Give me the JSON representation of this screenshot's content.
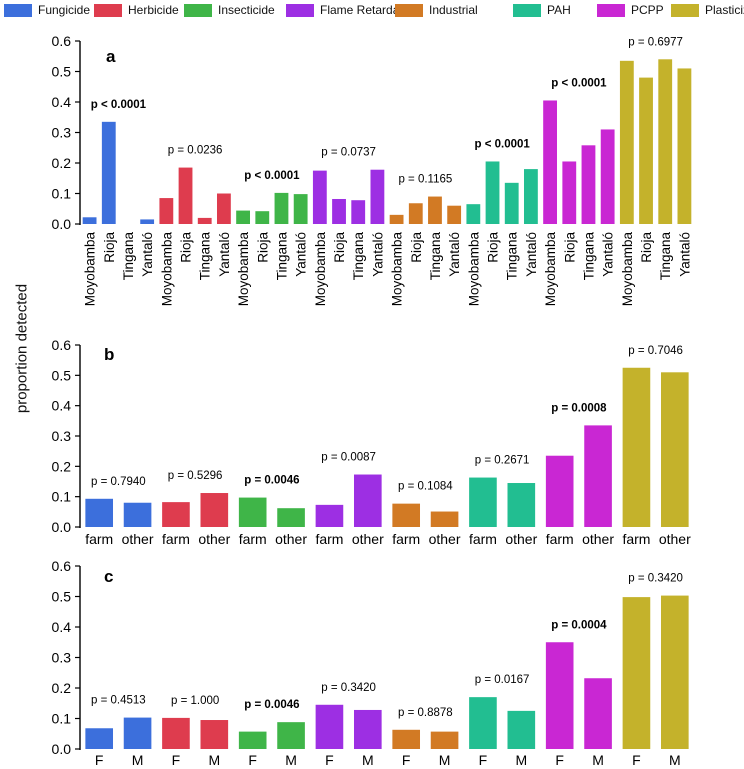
{
  "legend": [
    {
      "label": "Fungicide",
      "color": "#3c6fdc"
    },
    {
      "label": "Herbicide",
      "color": "#de3c4e"
    },
    {
      "label": "Insecticide",
      "color": "#3fb548"
    },
    {
      "label": "Flame Retardant",
      "color": "#9d2fe3"
    },
    {
      "label": "Industrial",
      "color": "#d27a24"
    },
    {
      "label": "PAH",
      "color": "#22be91"
    },
    {
      "label": "PCPP",
      "color": "#c927d3"
    },
    {
      "label": "Plasticizer",
      "color": "#c4b22b"
    }
  ],
  "ylabel": "proportion detected",
  "chart_data": [
    {
      "type": "bar",
      "panel_label": "a",
      "ylim": [
        0,
        0.6
      ],
      "yticks": [
        "0.0",
        "0.1",
        "0.2",
        "0.3",
        "0.4",
        "0.5",
        "0.6"
      ],
      "group_labels": [
        "Moyobamba",
        "Rioja",
        "Tingana",
        "Yantaló"
      ],
      "groups": [
        {
          "category": "Fungicide",
          "values": [
            0.022,
            0.335,
            0.0,
            0.015
          ],
          "pvalue": "p < 0.0001",
          "bold": true
        },
        {
          "category": "Herbicide",
          "values": [
            0.085,
            0.185,
            0.02,
            0.1
          ],
          "pvalue": "p = 0.0236",
          "bold": false
        },
        {
          "category": "Insecticide",
          "values": [
            0.044,
            0.042,
            0.102,
            0.098
          ],
          "pvalue": "p < 0.0001",
          "bold": true
        },
        {
          "category": "Flame Retardant",
          "values": [
            0.175,
            0.082,
            0.078,
            0.178
          ],
          "pvalue": "p = 0.0737",
          "bold": false
        },
        {
          "category": "Industrial",
          "values": [
            0.03,
            0.068,
            0.09,
            0.06
          ],
          "pvalue": "p = 0.1165",
          "bold": false
        },
        {
          "category": "PAH",
          "values": [
            0.065,
            0.205,
            0.135,
            0.18
          ],
          "pvalue": "p < 0.0001",
          "bold": true
        },
        {
          "category": "PCPP",
          "values": [
            0.405,
            0.205,
            0.258,
            0.31
          ],
          "pvalue": "p < 0.0001",
          "bold": true
        },
        {
          "category": "Plasticizer",
          "values": [
            0.535,
            0.48,
            0.54,
            0.51
          ],
          "pvalue": "p = 0.6977",
          "bold": false
        }
      ]
    },
    {
      "type": "bar",
      "panel_label": "b",
      "ylim": [
        0,
        0.6
      ],
      "yticks": [
        "0.0",
        "0.1",
        "0.2",
        "0.3",
        "0.4",
        "0.5",
        "0.6"
      ],
      "group_labels": [
        "farm",
        "other"
      ],
      "groups": [
        {
          "category": "Fungicide",
          "values": [
            0.093,
            0.08
          ],
          "pvalue": "p = 0.7940",
          "bold": false
        },
        {
          "category": "Herbicide",
          "values": [
            0.082,
            0.112
          ],
          "pvalue": "p = 0.5296",
          "bold": false
        },
        {
          "category": "Insecticide",
          "values": [
            0.097,
            0.062
          ],
          "pvalue": "p = 0.0046",
          "bold": true
        },
        {
          "category": "Flame Retardant",
          "values": [
            0.073,
            0.173
          ],
          "pvalue": "p = 0.0087",
          "bold": false
        },
        {
          "category": "Industrial",
          "values": [
            0.077,
            0.051
          ],
          "pvalue": "p = 0.1084",
          "bold": false
        },
        {
          "category": "PAH",
          "values": [
            0.163,
            0.145
          ],
          "pvalue": "p = 0.2671",
          "bold": false
        },
        {
          "category": "PCPP",
          "values": [
            0.235,
            0.335
          ],
          "pvalue": "p = 0.0008",
          "bold": true
        },
        {
          "category": "Plasticizer",
          "values": [
            0.525,
            0.51
          ],
          "pvalue": "p = 0.7046",
          "bold": false
        }
      ]
    },
    {
      "type": "bar",
      "panel_label": "c",
      "ylim": [
        0,
        0.6
      ],
      "yticks": [
        "0.0",
        "0.1",
        "0.2",
        "0.3",
        "0.4",
        "0.5",
        "0.6"
      ],
      "group_labels": [
        "F",
        "M"
      ],
      "groups": [
        {
          "category": "Fungicide",
          "values": [
            0.068,
            0.103
          ],
          "pvalue": "p = 0.4513",
          "bold": false
        },
        {
          "category": "Herbicide",
          "values": [
            0.102,
            0.095
          ],
          "pvalue": "p = 1.000",
          "bold": false
        },
        {
          "category": "Insecticide",
          "values": [
            0.057,
            0.088
          ],
          "pvalue": "p = 0.0046",
          "bold": true
        },
        {
          "category": "Flame Retardant",
          "values": [
            0.145,
            0.128
          ],
          "pvalue": "p = 0.3420",
          "bold": false
        },
        {
          "category": "Industrial",
          "values": [
            0.063,
            0.057
          ],
          "pvalue": "p = 0.8878",
          "bold": false
        },
        {
          "category": "PAH",
          "values": [
            0.17,
            0.125
          ],
          "pvalue": "p = 0.0167",
          "bold": false
        },
        {
          "category": "PCPP",
          "values": [
            0.35,
            0.232
          ],
          "pvalue": "p = 0.0004",
          "bold": true
        },
        {
          "category": "Plasticizer",
          "values": [
            0.498,
            0.503
          ],
          "pvalue": "p = 0.3420",
          "bold": false
        }
      ]
    }
  ]
}
